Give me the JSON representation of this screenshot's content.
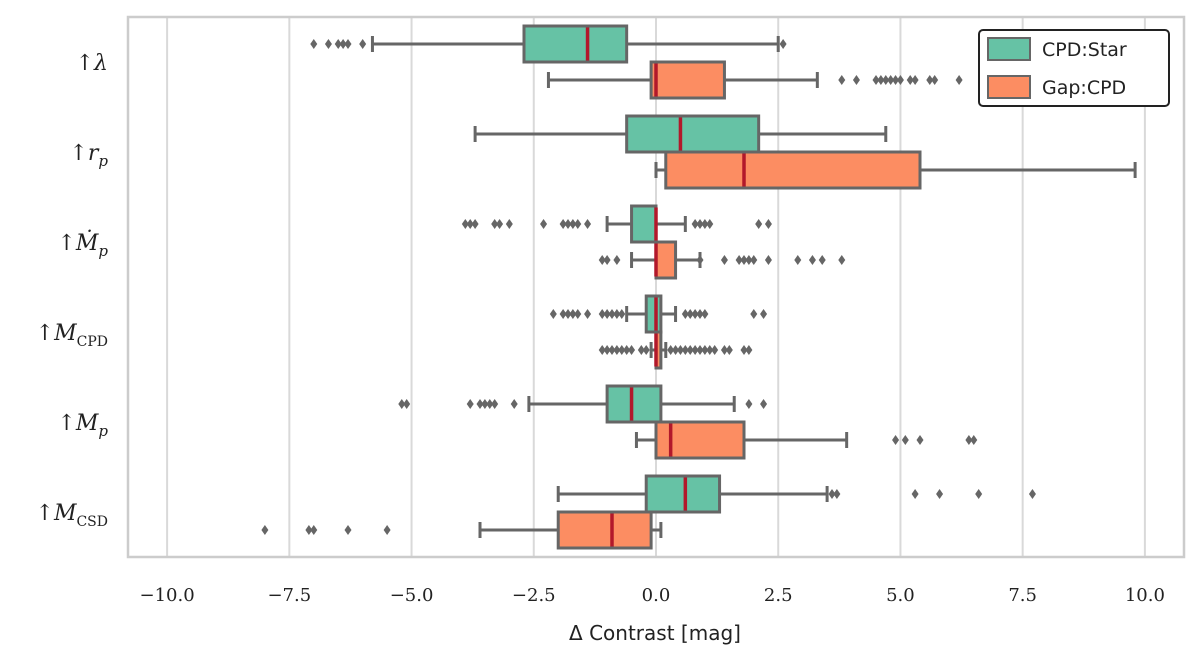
{
  "chart_data": {
    "type": "boxplot",
    "orientation": "horizontal",
    "title": "",
    "xlabel": "Δ Contrast [mag]",
    "ylabel": "",
    "xlim": [
      -10.8,
      10.8
    ],
    "xticks": [
      -10.0,
      -7.5,
      -5.0,
      -2.5,
      0.0,
      2.5,
      5.0,
      7.5,
      10.0
    ],
    "xtick_labels": [
      "−10.0",
      "−7.5",
      "−5.0",
      "−2.5",
      "0.0",
      "2.5",
      "5.0",
      "7.5",
      "10.0"
    ],
    "grid": "vertical",
    "legend_position": "top-right",
    "categories": [
      "↑λ",
      "↑r_p",
      "↑Ṁ_p",
      "↑M_CPD",
      "↑M_p",
      "↑M_CSD"
    ],
    "category_labels": [
      {
        "arrow": "↑",
        "main": "λ",
        "sub": ""
      },
      {
        "arrow": "↑",
        "main": "r",
        "sub": "p"
      },
      {
        "arrow": "↑",
        "main": "Ṁ",
        "sub": "p"
      },
      {
        "arrow": "↑",
        "main": "M",
        "sub": "CPD"
      },
      {
        "arrow": "↑",
        "main": "M",
        "sub": "p"
      },
      {
        "arrow": "↑",
        "main": "M",
        "sub": "CSD"
      }
    ],
    "series": [
      {
        "name": "CPD:Star",
        "color": "#66c2a5",
        "boxes": [
          {
            "whisker_low": -5.8,
            "q1": -2.7,
            "median": -1.4,
            "q3": -0.6,
            "whisker_high": 2.5,
            "outliers": [
              -7.0,
              -6.7,
              -6.5,
              -6.4,
              -6.3,
              -6.0,
              2.6
            ]
          },
          {
            "whisker_low": -3.7,
            "q1": -0.6,
            "median": 0.5,
            "q3": 2.1,
            "whisker_high": 4.7,
            "outliers": []
          },
          {
            "whisker_low": -1.0,
            "q1": -0.5,
            "median": 0.0,
            "q3": 0.0,
            "whisker_high": 0.6,
            "outliers": [
              -3.9,
              -3.8,
              -3.7,
              -3.3,
              -3.2,
              -3.0,
              -2.3,
              -1.9,
              -1.8,
              -1.7,
              -1.6,
              -1.4,
              0.8,
              0.9,
              1.0,
              1.1,
              2.1,
              2.3
            ]
          },
          {
            "whisker_low": -0.6,
            "q1": -0.2,
            "median": 0.0,
            "q3": 0.1,
            "whisker_high": 0.4,
            "outliers": [
              -2.1,
              -1.9,
              -1.8,
              -1.7,
              -1.6,
              -1.4,
              -1.1,
              -1.0,
              -0.9,
              -0.8,
              -0.7,
              0.6,
              0.7,
              0.8,
              0.9,
              1.0,
              2.0,
              2.2
            ]
          },
          {
            "whisker_low": -2.6,
            "q1": -1.0,
            "median": -0.5,
            "q3": 0.1,
            "whisker_high": 1.6,
            "outliers": [
              -5.2,
              -5.1,
              -3.8,
              -3.6,
              -3.5,
              -3.4,
              -3.3,
              -2.9,
              1.9,
              2.2
            ]
          },
          {
            "whisker_low": -2.0,
            "q1": -0.2,
            "median": 0.6,
            "q3": 1.3,
            "whisker_high": 3.5,
            "outliers": [
              3.6,
              3.7,
              5.3,
              5.8,
              6.6,
              7.7
            ]
          }
        ]
      },
      {
        "name": "Gap:CPD",
        "color": "#fc8d62",
        "boxes": [
          {
            "whisker_low": -2.2,
            "q1": -0.1,
            "median": 0.0,
            "q3": 1.4,
            "whisker_high": 3.3,
            "outliers": [
              3.8,
              4.1,
              4.5,
              4.6,
              4.7,
              4.8,
              4.9,
              5.0,
              5.2,
              5.3,
              5.6,
              5.7,
              6.2
            ]
          },
          {
            "whisker_low": 0.0,
            "q1": 0.2,
            "median": 1.8,
            "q3": 5.4,
            "whisker_high": 9.8,
            "outliers": []
          },
          {
            "whisker_low": -0.5,
            "q1": 0.0,
            "median": 0.0,
            "q3": 0.4,
            "whisker_high": 0.9,
            "outliers": [
              -1.1,
              -1.0,
              -0.8,
              0.9,
              1.4,
              1.7,
              1.8,
              1.9,
              2.0,
              2.3,
              2.9,
              3.2,
              3.4,
              3.8
            ]
          },
          {
            "whisker_low": -0.1,
            "q1": 0.0,
            "median": 0.0,
            "q3": 0.1,
            "whisker_high": 0.2,
            "outliers": [
              -1.1,
              -1.0,
              -0.9,
              -0.8,
              -0.7,
              -0.6,
              -0.5,
              -0.3,
              -0.2,
              0.3,
              0.4,
              0.5,
              0.6,
              0.7,
              0.8,
              0.9,
              1.0,
              1.1,
              1.2,
              1.4,
              1.5,
              1.8,
              1.9
            ]
          },
          {
            "whisker_low": -0.4,
            "q1": 0.0,
            "median": 0.3,
            "q3": 1.8,
            "whisker_high": 3.9,
            "outliers": [
              4.9,
              5.1,
              5.4,
              6.4,
              6.5
            ]
          },
          {
            "whisker_low": -3.6,
            "q1": -2.0,
            "median": -0.9,
            "q3": -0.1,
            "whisker_high": 0.1,
            "outliers": [
              -8.0,
              -7.1,
              -7.0,
              -6.3,
              -5.5
            ]
          }
        ]
      }
    ],
    "median_color": "#b2182b",
    "box_edge_color": "#666666"
  }
}
